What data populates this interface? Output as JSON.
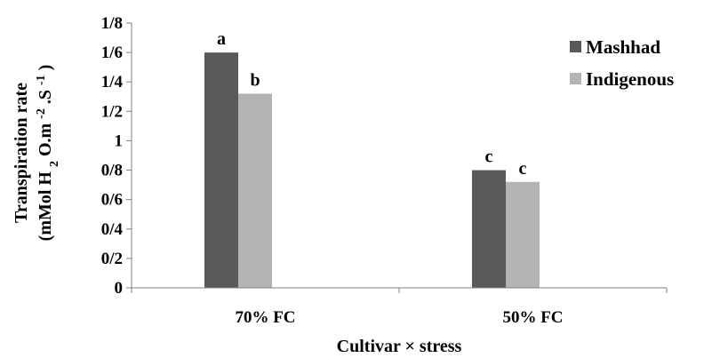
{
  "chart_data": {
    "type": "bar",
    "categories": [
      "70% FC",
      "50% FC"
    ],
    "series": [
      {
        "name": "Mashhad",
        "values": [
          1.6,
          0.8
        ],
        "labels": [
          "a",
          "c"
        ],
        "color": "#595959"
      },
      {
        "name": "Indigenous",
        "values": [
          1.32,
          0.72
        ],
        "labels": [
          "b",
          "c"
        ],
        "color": "#b3b3b3"
      }
    ],
    "yticks": [
      {
        "value": 0,
        "label": "0"
      },
      {
        "value": 0.2,
        "label": "0/2"
      },
      {
        "value": 0.4,
        "label": "0/4"
      },
      {
        "value": 0.6,
        "label": "0/6"
      },
      {
        "value": 0.8,
        "label": "0/8"
      },
      {
        "value": 1.0,
        "label": "1"
      },
      {
        "value": 1.2,
        "label": "1/2"
      },
      {
        "value": 1.4,
        "label": "1/4"
      },
      {
        "value": 1.6,
        "label": "1/6"
      },
      {
        "value": 1.8,
        "label": "1/8"
      }
    ],
    "ylim": [
      0,
      1.8
    ],
    "xlabel": "Cultivar × stress",
    "ylabel": {
      "line1": "Transpiration rate",
      "line2_parts": [
        "(mMol H",
        "2",
        "O.m",
        "-2",
        ".S",
        "-1",
        ")"
      ]
    },
    "grid": false,
    "legend_position": "top-right"
  }
}
